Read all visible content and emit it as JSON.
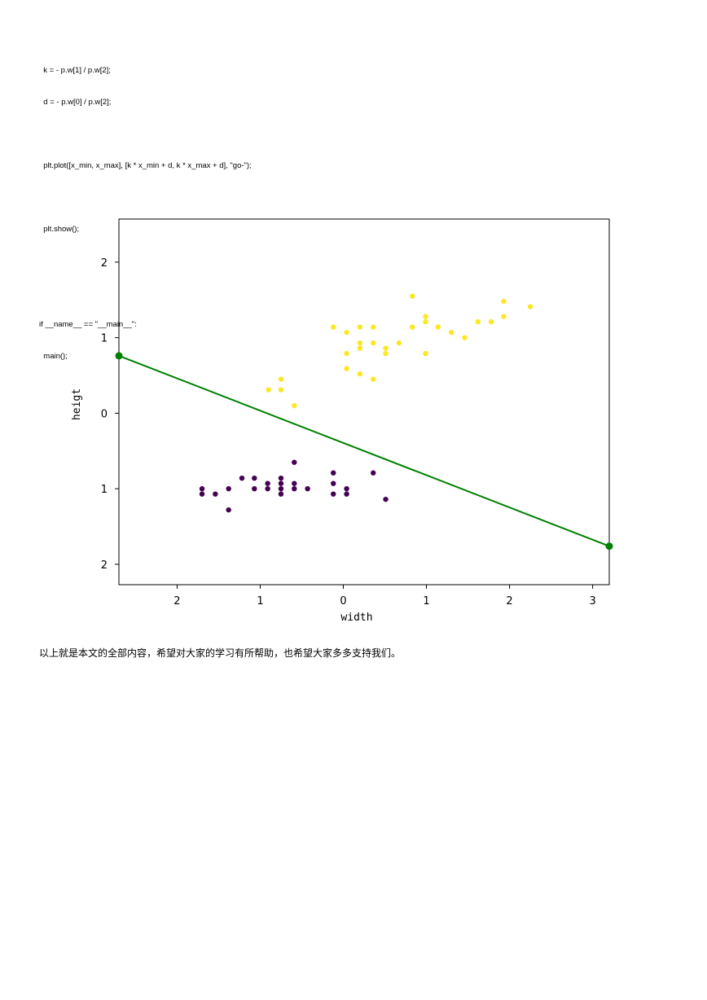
{
  "code_lines": [
    "  k = - p.w[1] / p.w[2];",
    "  d = - p.w[0] / p.w[2];",
    "",
    "  plt.plot([x_min, x_max], [k * x_min + d, k * x_max + d], \"go-\");",
    "",
    "  plt.show();",
    "",
    "",
    "if __name__ == \"__main__\":",
    "  main();"
  ],
  "chart_data": {
    "type": "scatter",
    "xlabel": "width",
    "ylabel": "heigt",
    "xlim": [
      -2.7,
      3.2
    ],
    "ylim": [
      -2.27,
      2.57
    ],
    "x_ticks": [
      -2,
      -1,
      0,
      1,
      2,
      3
    ],
    "x_tick_labels": [
      "2",
      "1",
      "0",
      "1",
      "2",
      "3"
    ],
    "y_ticks": [
      2,
      1,
      0,
      -1,
      -2
    ],
    "y_tick_labels": [
      "2",
      "1",
      "0",
      "1",
      "2"
    ],
    "series": [
      {
        "color": "#fde725",
        "points": [
          [
            -0.9,
            0.31
          ],
          [
            -0.75,
            0.31
          ],
          [
            -0.75,
            0.45
          ],
          [
            -0.59,
            0.1
          ],
          [
            -0.12,
            1.14
          ],
          [
            0.04,
            1.07
          ],
          [
            0.04,
            0.79
          ],
          [
            0.04,
            0.59
          ],
          [
            0.2,
            1.14
          ],
          [
            0.2,
            0.93
          ],
          [
            0.2,
            0.86
          ],
          [
            0.2,
            0.52
          ],
          [
            0.36,
            1.14
          ],
          [
            0.36,
            0.93
          ],
          [
            0.36,
            0.45
          ],
          [
            0.51,
            0.86
          ],
          [
            0.51,
            0.79
          ],
          [
            0.67,
            0.93
          ],
          [
            0.83,
            1.55
          ],
          [
            0.83,
            1.14
          ],
          [
            0.99,
            1.28
          ],
          [
            0.99,
            1.21
          ],
          [
            0.99,
            0.79
          ],
          [
            1.14,
            1.14
          ],
          [
            1.3,
            1.07
          ],
          [
            1.46,
            1.0
          ],
          [
            1.62,
            1.21
          ],
          [
            1.78,
            1.21
          ],
          [
            1.93,
            1.48
          ],
          [
            1.93,
            1.28
          ],
          [
            2.25,
            1.41
          ]
        ]
      },
      {
        "color": "#440154",
        "points": [
          [
            -1.7,
            -1.0
          ],
          [
            -1.7,
            -1.07
          ],
          [
            -1.54,
            -1.07
          ],
          [
            -1.38,
            -1.0
          ],
          [
            -1.38,
            -1.28
          ],
          [
            -1.22,
            -0.86
          ],
          [
            -1.07,
            -0.86
          ],
          [
            -1.07,
            -1.0
          ],
          [
            -0.91,
            -0.93
          ],
          [
            -0.91,
            -1.0
          ],
          [
            -0.75,
            -0.86
          ],
          [
            -0.75,
            -0.93
          ],
          [
            -0.75,
            -1.0
          ],
          [
            -0.75,
            -1.07
          ],
          [
            -0.59,
            -0.65
          ],
          [
            -0.59,
            -0.93
          ],
          [
            -0.59,
            -1.0
          ],
          [
            -0.43,
            -1.0
          ],
          [
            -0.12,
            -0.79
          ],
          [
            -0.12,
            -0.93
          ],
          [
            -0.12,
            -1.07
          ],
          [
            0.04,
            -1.0
          ],
          [
            0.04,
            -1.07
          ],
          [
            0.36,
            -0.79
          ],
          [
            0.51,
            -1.14
          ]
        ]
      }
    ],
    "line": {
      "color": "#008000",
      "x": [
        -2.7,
        3.2
      ],
      "y": [
        0.76,
        -1.76
      ]
    }
  },
  "footer_text": "以上就是本文的全部内容，希望对大家的学习有所帮助，也希望大家多多支持我们。"
}
